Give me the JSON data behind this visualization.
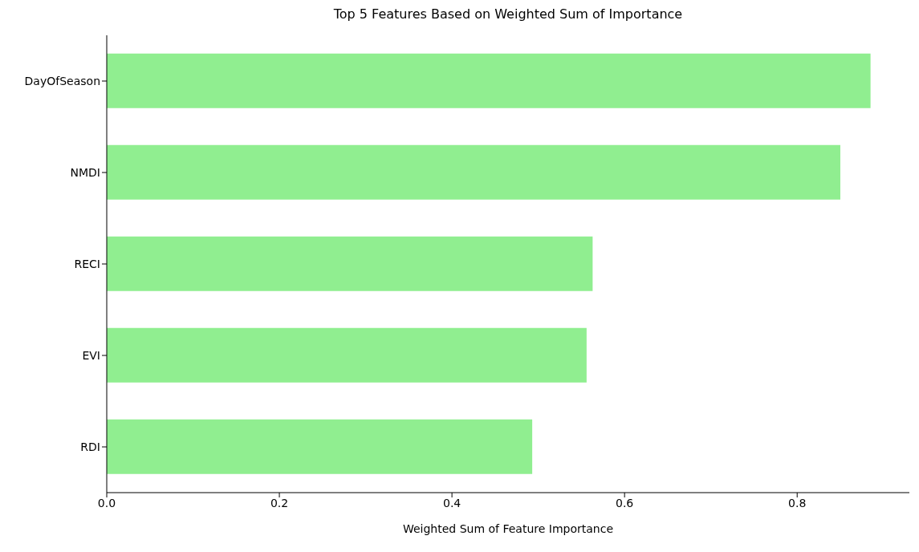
{
  "chart_data": {
    "type": "bar",
    "orientation": "horizontal",
    "title": "Top 5 Features Based on Weighted Sum of Importance",
    "xlabel": "Weighted Sum of Feature Importance",
    "categories": [
      "DayOfSeason",
      "NMDI",
      "RECI",
      "EVI",
      "RDI"
    ],
    "values": [
      0.885,
      0.85,
      0.563,
      0.556,
      0.493
    ],
    "color": "#90ee90",
    "xlim": [
      0,
      0.93
    ],
    "xticks": [
      {
        "value": 0,
        "label": "0.0"
      },
      {
        "value": 0.2,
        "label": "0.2"
      },
      {
        "value": 0.4,
        "label": "0.4"
      },
      {
        "value": 0.6,
        "label": "0.6"
      },
      {
        "value": 0.8,
        "label": "0.8"
      }
    ],
    "grid": false,
    "legend": false
  }
}
